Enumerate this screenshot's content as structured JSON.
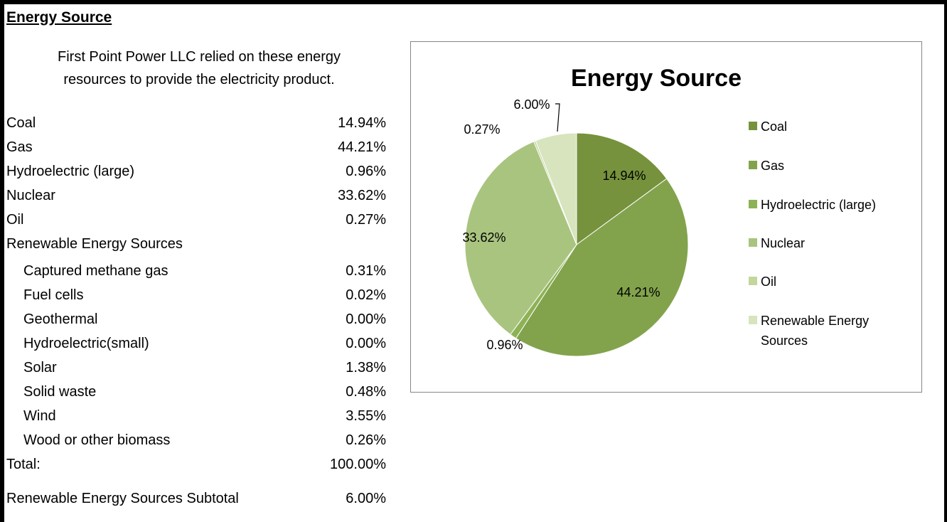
{
  "section_title": "Energy Source",
  "intro_lines": [
    "First Point Power LLC  relied on these energy",
    "resources to provide the electricity product."
  ],
  "rows": [
    {
      "label": "Coal",
      "value": "14.94%",
      "sub": false
    },
    {
      "label": "Gas",
      "value": "44.21%",
      "sub": false
    },
    {
      "label": "Hydroelectric (large)",
      "value": "0.96%",
      "sub": false
    },
    {
      "label": "Nuclear",
      "value": "33.62%",
      "sub": false
    },
    {
      "label": "Oil",
      "value": "0.27%",
      "sub": false
    },
    {
      "label": "Renewable Energy Sources",
      "value": "",
      "sub": false
    },
    {
      "label": "Captured methane gas",
      "value": "0.31%",
      "sub": true
    },
    {
      "label": "Fuel cells",
      "value": "0.02%",
      "sub": true
    },
    {
      "label": "Geothermal",
      "value": "0.00%",
      "sub": true
    },
    {
      "label": "Hydroelectric(small)",
      "value": "0.00%",
      "sub": true
    },
    {
      "label": "Solar",
      "value": "1.38%",
      "sub": true
    },
    {
      "label": "Solid waste",
      "value": "0.48%",
      "sub": true
    },
    {
      "label": "Wind",
      "value": "3.55%",
      "sub": true
    },
    {
      "label": "Wood or other biomass",
      "value": "0.26%",
      "sub": true
    },
    {
      "label": "Total:",
      "value": "100.00%",
      "sub": false
    },
    {
      "label": "Renewable Energy Sources Subtotal",
      "value": "6.00%",
      "sub": false
    }
  ],
  "chart_data": {
    "type": "pie",
    "title": "Energy Source",
    "legend_position": "right",
    "slices": [
      {
        "name": "Coal",
        "value": 14.94,
        "label": "14.94%",
        "color": "#76923C"
      },
      {
        "name": "Gas",
        "value": 44.21,
        "label": "44.21%",
        "color": "#82A34C"
      },
      {
        "name": "Hydroelectric (large)",
        "value": 0.96,
        "label": "0.96%",
        "color": "#8DB255"
      },
      {
        "name": "Nuclear",
        "value": 33.62,
        "label": "33.62%",
        "color": "#A9C47F"
      },
      {
        "name": "Oil",
        "value": 0.27,
        "label": "0.27%",
        "color": "#C3D69B"
      },
      {
        "name": "Renewable Energy Sources",
        "value": 6.0,
        "label": "6.00%",
        "color": "#D7E4BD"
      }
    ]
  }
}
